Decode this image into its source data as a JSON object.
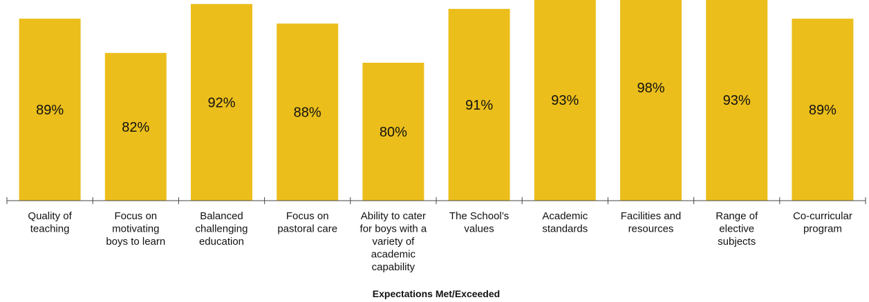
{
  "chart_data": {
    "type": "bar",
    "categories": [
      "Quality of teaching",
      "Focus on motivating boys to learn",
      "Balanced challenging education",
      "Focus on pastoral care",
      "Ability to cater for boys with a variety of academic capability",
      "The School’s values",
      "Academic standards",
      "Facilities and resources",
      "Range of elective subjects",
      "Co-curricular program"
    ],
    "category_lines": [
      [
        "Quality of",
        "teaching"
      ],
      [
        "Focus on",
        "motivating",
        "boys to learn"
      ],
      [
        "Balanced",
        "challenging",
        "education"
      ],
      [
        "Focus on",
        "pastoral care"
      ],
      [
        "Ability to cater",
        "for boys with a",
        "variety of",
        "academic",
        "capability"
      ],
      [
        "The School’s",
        "values"
      ],
      [
        "Academic",
        "standards"
      ],
      [
        "Facilities and",
        "resources"
      ],
      [
        "Range of",
        "elective",
        "subjects"
      ],
      [
        "Co-curricular",
        "program"
      ]
    ],
    "values": [
      89,
      82,
      92,
      88,
      80,
      91,
      93,
      98,
      93,
      89
    ],
    "data_labels": [
      "89%",
      "82%",
      "92%",
      "88%",
      "80%",
      "91%",
      "93%",
      "98%",
      "93%",
      "89%"
    ],
    "xlabel": "Expectations Met/Exceeded",
    "ylabel": "",
    "ylim": [
      0,
      100
    ],
    "grid": false,
    "colors": {
      "bar": "#EBBE1C",
      "axis": "#444444",
      "text": "#111111"
    }
  }
}
